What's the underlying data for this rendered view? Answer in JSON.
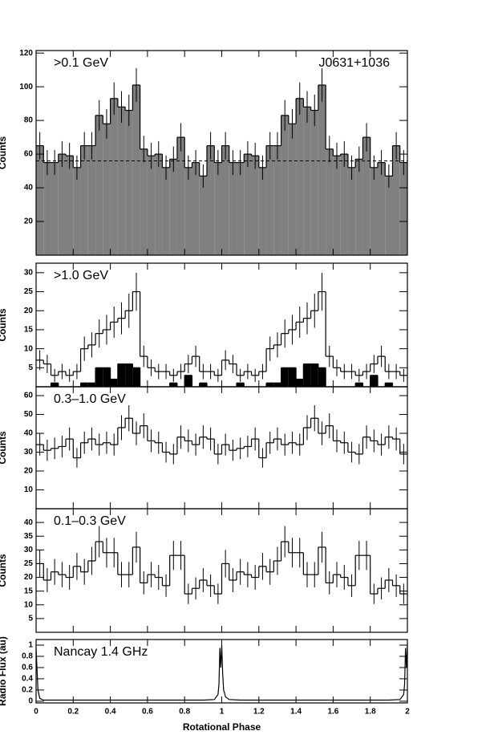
{
  "chart_data": [
    {
      "type": "histogram",
      "label": ">0.1 GeV",
      "source": "J0631+1036",
      "ylabel": "Counts",
      "xlim": [
        0,
        2
      ],
      "ylim": [
        0,
        121.5
      ],
      "yticks": [
        20,
        40,
        60,
        80,
        100,
        120
      ],
      "background_level": 56,
      "bins": [
        0,
        0.04,
        0.08,
        0.12,
        0.16,
        0.2,
        0.24,
        0.28,
        0.32,
        0.36,
        0.4,
        0.44,
        0.48,
        0.52,
        0.56,
        0.6,
        0.64,
        0.68,
        0.72,
        0.76,
        0.8,
        0.84,
        0.88,
        0.92,
        0.96,
        1,
        1.04,
        1.08,
        1.12,
        1.16,
        1.2,
        1.24,
        1.28,
        1.32,
        1.36,
        1.4,
        1.44,
        1.48,
        1.52,
        1.56,
        1.6,
        1.64,
        1.68,
        1.72,
        1.76,
        1.8,
        1.84,
        1.88,
        1.92,
        1.96,
        2
      ],
      "series": [
        {
          "color": "#000000",
          "fill": "#808080",
          "values": [
            65,
            55,
            55,
            60,
            59,
            52,
            65,
            65,
            83,
            78,
            93,
            88,
            86,
            101,
            63,
            59,
            60,
            52,
            57,
            70,
            52,
            55,
            47,
            65,
            55,
            65,
            55,
            55,
            60,
            59,
            52,
            65,
            65,
            83,
            78,
            93,
            88,
            86,
            101,
            63,
            59,
            60,
            52,
            57,
            70,
            52,
            55,
            47,
            65,
            55
          ],
          "errors": [
            8.1,
            7.4,
            7.4,
            7.7,
            7.7,
            7.2,
            8.1,
            8.1,
            9.1,
            8.8,
            9.6,
            9.4,
            9.3,
            10,
            7.9,
            7.7,
            7.7,
            7.2,
            7.5,
            8.4,
            7.2,
            7.4,
            6.9,
            8.1,
            7.4,
            8.1,
            7.4,
            7.4,
            7.7,
            7.7,
            7.2,
            8.1,
            8.1,
            9.1,
            8.8,
            9.6,
            9.4,
            9.3,
            10,
            7.9,
            7.7,
            7.7,
            7.2,
            7.5,
            8.4,
            7.2,
            7.4,
            6.9,
            8.1,
            7.4
          ]
        }
      ]
    },
    {
      "type": "histogram",
      "label": ">1.0 GeV",
      "ylabel": "Counts",
      "xlim": [
        0,
        2
      ],
      "ylim": [
        0,
        32.5
      ],
      "yticks": [
        5,
        10,
        15,
        20,
        25,
        30
      ],
      "bins": [
        0,
        0.04,
        0.08,
        0.12,
        0.16,
        0.2,
        0.24,
        0.28,
        0.32,
        0.36,
        0.4,
        0.44,
        0.48,
        0.52,
        0.56,
        0.6,
        0.64,
        0.68,
        0.72,
        0.76,
        0.8,
        0.84,
        0.88,
        0.92,
        0.96,
        1,
        1.04,
        1.08,
        1.12,
        1.16,
        1.2,
        1.24,
        1.28,
        1.32,
        1.36,
        1.4,
        1.44,
        1.48,
        1.52,
        1.56,
        1.6,
        1.64,
        1.68,
        1.72,
        1.76,
        1.8,
        1.84,
        1.88,
        1.92,
        1.96,
        2
      ],
      "series": [
        {
          "color": "#000000",
          "values": [
            7,
            6,
            3,
            4,
            3,
            4,
            10,
            11,
            14,
            15,
            17,
            18,
            20,
            25,
            8,
            5,
            4,
            4,
            3,
            4,
            6,
            8,
            4,
            4,
            3,
            7,
            6,
            3,
            4,
            3,
            4,
            10,
            11,
            14,
            15,
            17,
            18,
            20,
            25,
            8,
            5,
            4,
            4,
            3,
            4,
            6,
            8,
            4,
            4,
            3
          ],
          "errors": [
            2.6,
            2.4,
            1.7,
            2,
            1.7,
            2,
            3.2,
            3.3,
            3.7,
            3.9,
            4.1,
            4.2,
            4.5,
            5,
            2.8,
            2.2,
            2,
            2,
            1.7,
            2,
            2.4,
            2.8,
            2,
            2,
            1.7,
            2.6,
            2.4,
            1.7,
            2,
            1.7,
            2,
            3.2,
            3.3,
            3.7,
            3.9,
            4.1,
            4.2,
            4.5,
            5,
            2.8,
            2.2,
            2,
            2,
            1.7,
            2,
            2.4,
            2.8,
            2,
            2,
            1.7
          ]
        },
        {
          "color": "#000000",
          "fill": "#000000",
          "values": [
            0,
            0,
            1,
            0,
            0,
            0,
            1,
            1,
            5,
            5,
            2,
            6,
            6,
            5,
            0,
            0,
            0,
            0,
            1,
            0,
            3,
            0,
            1,
            0,
            0,
            0,
            0,
            1,
            0,
            0,
            0,
            1,
            1,
            5,
            5,
            2,
            6,
            6,
            5,
            0,
            0,
            0,
            0,
            1,
            0,
            3,
            0,
            1,
            0,
            0
          ]
        }
      ]
    },
    {
      "type": "histogram",
      "label": "0.3–1.0 GeV",
      "ylabel": "Counts",
      "xlim": [
        0,
        2
      ],
      "ylim": [
        0,
        64.7
      ],
      "yticks": [
        10,
        20,
        30,
        40,
        50,
        60
      ],
      "bins": [
        0,
        0.04,
        0.08,
        0.12,
        0.16,
        0.2,
        0.24,
        0.28,
        0.32,
        0.36,
        0.4,
        0.44,
        0.48,
        0.52,
        0.56,
        0.6,
        0.64,
        0.68,
        0.72,
        0.76,
        0.8,
        0.84,
        0.88,
        0.92,
        0.96,
        1,
        1.04,
        1.08,
        1.12,
        1.16,
        1.2,
        1.24,
        1.28,
        1.32,
        1.36,
        1.4,
        1.44,
        1.48,
        1.52,
        1.56,
        1.6,
        1.64,
        1.68,
        1.72,
        1.76,
        1.8,
        1.84,
        1.88,
        1.92,
        1.96,
        2
      ],
      "series": [
        {
          "color": "#000000",
          "values": [
            34,
            31,
            32,
            33,
            37,
            27,
            35,
            37,
            34,
            35,
            34,
            43,
            48,
            40,
            44,
            36,
            35,
            30,
            29,
            38,
            36,
            34,
            38,
            37,
            29,
            34,
            31,
            32,
            33,
            37,
            27,
            35,
            37,
            34,
            35,
            34,
            43,
            48,
            40,
            44,
            36,
            35,
            30,
            29,
            38,
            36,
            34,
            38,
            37,
            29
          ],
          "errors": [
            5.8,
            5.6,
            5.7,
            5.7,
            6.1,
            5.2,
            5.9,
            6.1,
            5.8,
            5.9,
            5.8,
            6.6,
            6.9,
            6.3,
            6.6,
            6,
            5.9,
            5.5,
            5.4,
            6.2,
            6,
            5.8,
            6.2,
            6.1,
            5.4,
            5.8,
            5.6,
            5.7,
            5.7,
            6.1,
            5.2,
            5.9,
            6.1,
            5.8,
            5.9,
            5.8,
            6.6,
            6.9,
            6.3,
            6.6,
            6,
            5.9,
            5.5,
            5.4,
            6.2,
            6,
            5.8,
            6.2,
            6.1,
            5.4
          ]
        }
      ]
    },
    {
      "type": "histogram",
      "label": "0.1–0.3 GeV",
      "ylabel": "Counts",
      "xlim": [
        0,
        2
      ],
      "ylim": [
        0,
        45
      ],
      "yticks": [
        5,
        10,
        15,
        20,
        25,
        30,
        35,
        40
      ],
      "bins": [
        0,
        0.04,
        0.08,
        0.12,
        0.16,
        0.2,
        0.24,
        0.28,
        0.32,
        0.36,
        0.4,
        0.44,
        0.48,
        0.52,
        0.56,
        0.6,
        0.64,
        0.68,
        0.72,
        0.76,
        0.8,
        0.84,
        0.88,
        0.92,
        0.96,
        1,
        1.04,
        1.08,
        1.12,
        1.16,
        1.2,
        1.24,
        1.28,
        1.32,
        1.36,
        1.4,
        1.44,
        1.48,
        1.52,
        1.56,
        1.6,
        1.64,
        1.68,
        1.72,
        1.76,
        1.8,
        1.84,
        1.88,
        1.92,
        1.96,
        2
      ],
      "series": [
        {
          "color": "#000000",
          "values": [
            25,
            19,
            22,
            21,
            20,
            24,
            22,
            26,
            33,
            29,
            29,
            21,
            21,
            31,
            18,
            21,
            20,
            17,
            28,
            28,
            14,
            16,
            19,
            17,
            14,
            25,
            19,
            22,
            21,
            20,
            24,
            22,
            26,
            33,
            29,
            29,
            21,
            21,
            31,
            18,
            21,
            20,
            17,
            28,
            28,
            14,
            16,
            19,
            17,
            14
          ],
          "errors": [
            5,
            4.4,
            4.7,
            4.6,
            4.5,
            4.9,
            4.7,
            5.1,
            5.7,
            5.4,
            5.4,
            4.6,
            4.6,
            5.6,
            4.2,
            4.6,
            4.5,
            4.1,
            5.3,
            5.3,
            3.7,
            4,
            4.4,
            4.1,
            3.7,
            5,
            4.4,
            4.7,
            4.6,
            4.5,
            4.9,
            4.7,
            5.1,
            5.7,
            5.4,
            5.4,
            4.6,
            4.6,
            5.6,
            4.2,
            4.6,
            4.5,
            4.1,
            5.3,
            5.3,
            3.7,
            4,
            4.4,
            4.1,
            3.7
          ]
        }
      ]
    },
    {
      "type": "line",
      "label": "Nancay 1.4 GHz",
      "ylabel": "Radio Flux (au)",
      "xlabel": "Rotational Phase",
      "xlim": [
        0,
        2
      ],
      "ylim": [
        -0.03,
        1.1
      ],
      "yticks": [
        0,
        0.2,
        0.4,
        0.6,
        0.8,
        1
      ],
      "xticks": [
        0,
        0.2,
        0.4,
        0.6,
        0.8,
        1,
        1.2,
        1.4,
        1.6,
        1.8,
        2
      ],
      "x": [
        0,
        0.01,
        0.02,
        0.04,
        0.1,
        0.5,
        0.9,
        0.96,
        0.98,
        0.985,
        0.99,
        0.995,
        1,
        1.005,
        1.01,
        1.015,
        1.02,
        1.04,
        1.1,
        1.5,
        1.9,
        1.96,
        1.98,
        1.985,
        1.99,
        1.995,
        2
      ],
      "series": [
        {
          "color": "#000000",
          "values": [
            0.95,
            0.2,
            0.05,
            0.02,
            0.02,
            0.02,
            0.02,
            0.03,
            0.12,
            0.3,
            0.95,
            0.6,
            1,
            0.5,
            0.2,
            0.15,
            0.08,
            0.03,
            0.02,
            0.02,
            0.02,
            0.03,
            0.12,
            0.3,
            0.95,
            0.6,
            1
          ]
        }
      ]
    }
  ]
}
